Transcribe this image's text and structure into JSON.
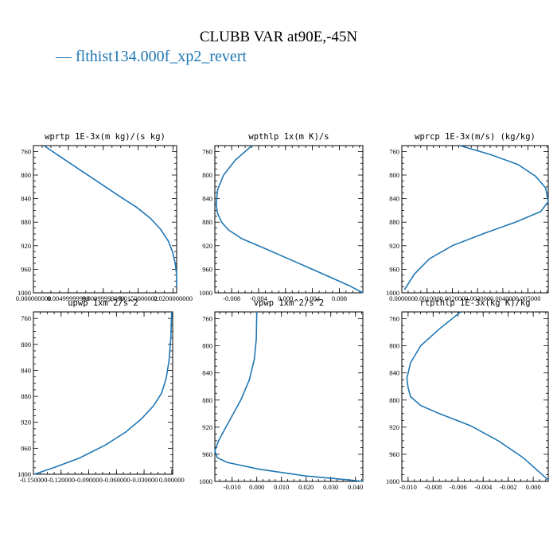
{
  "title": "CLUBB VAR at90E,-45N",
  "legend": {
    "label": "— flthist134.000f_xp2_revert",
    "color": "#1f77b4"
  },
  "chart_data": [
    {
      "type": "line",
      "title": "wprtp  1E-3x(m kg)/(s kg)",
      "ylim": [
        1000,
        750
      ],
      "y_ticks": [
        760,
        800,
        840,
        880,
        920,
        960,
        1000
      ],
      "xlim": [
        0.0,
        0.0205
      ],
      "x_ticks": [
        0.0,
        0.005,
        0.01,
        0.015,
        0.02
      ],
      "x_tick_labels": [
        "0.000000000",
        "0.00499999990",
        "0.00999999999",
        "0.0150000002",
        "0.0200000000"
      ],
      "series": [
        {
          "color": "#1f77b4",
          "x": [
            0.0015,
            0.004,
            0.0065,
            0.0093,
            0.0122,
            0.0148,
            0.0167,
            0.0182,
            0.0193,
            0.0199,
            0.0203,
            0.0205,
            0.0205
          ],
          "y": [
            750,
            770,
            790,
            812,
            835,
            855,
            873,
            892,
            912,
            930,
            950,
            970,
            990
          ]
        }
      ]
    },
    {
      "type": "line",
      "title": "wpthlp  1x(m K)/s",
      "ylim": [
        1000,
        750
      ],
      "y_ticks": [
        760,
        800,
        840,
        880,
        920,
        960,
        1000
      ],
      "xlim": [
        -0.0105,
        0.0115
      ],
      "x_ticks": [
        -0.008,
        -0.004,
        0.0,
        0.004,
        0.008
      ],
      "x_tick_labels": [
        "-0.008",
        "-0.004",
        "0.000",
        "0.004",
        "0.008"
      ],
      "series": [
        {
          "color": "#1f77b4",
          "x": [
            -0.005,
            -0.0075,
            -0.0092,
            -0.0101,
            -0.0103,
            -0.0101,
            -0.0095,
            -0.0085,
            -0.0065,
            -0.003,
            0.001,
            0.005,
            0.0095,
            0.0115
          ],
          "y": [
            750,
            775,
            800,
            825,
            850,
            865,
            880,
            893,
            908,
            925,
            945,
            965,
            988,
            1000
          ]
        }
      ]
    },
    {
      "type": "line",
      "title": "wprcp  1E-3x(m/s) (kg/kg)",
      "ylim": [
        1000,
        750
      ],
      "y_ticks": [
        760,
        800,
        840,
        880,
        920,
        960,
        1000
      ],
      "xlim": [
        0.0,
        0.0058
      ],
      "x_ticks": [
        0.0,
        0.001,
        0.002,
        0.003,
        0.004,
        0.005
      ],
      "x_tick_labels": [
        "0.000000",
        "0.001000",
        "0.002000",
        "0.003000",
        "0.004000",
        "0.005000"
      ],
      "series": [
        {
          "color": "#1f77b4",
          "x": [
            0.0023,
            0.0035,
            0.0046,
            0.0053,
            0.0057,
            0.0058,
            0.0055,
            0.0045,
            0.0032,
            0.002,
            0.0011,
            0.0005,
            0.0001
          ],
          "y": [
            750,
            765,
            782,
            802,
            822,
            845,
            862,
            880,
            900,
            920,
            942,
            968,
            995
          ]
        }
      ]
    },
    {
      "type": "line",
      "title": "upwp  1xm^2/s^2",
      "ylim": [
        1000,
        750
      ],
      "y_ticks": [
        760,
        800,
        840,
        880,
        920,
        960,
        1000
      ],
      "xlim": [
        -0.15,
        0.001
      ],
      "x_ticks": [
        -0.15,
        -0.12,
        -0.09,
        -0.06,
        -0.03,
        0.0
      ],
      "x_tick_labels": [
        "-0.150000",
        "-0.120000",
        "-0.090000",
        "-0.060000",
        "-0.030000",
        "0.000000"
      ],
      "series": [
        {
          "color": "#1f77b4",
          "x": [
            0.0,
            -0.001,
            -0.003,
            -0.006,
            -0.011,
            -0.02,
            -0.033,
            -0.05,
            -0.072,
            -0.1,
            -0.128,
            -0.149
          ],
          "y": [
            750,
            790,
            825,
            852,
            875,
            895,
            915,
            935,
            955,
            975,
            990,
            1000
          ]
        }
      ]
    },
    {
      "type": "line",
      "title": "vpwp  1xm^2/s^2",
      "ylim": [
        1000,
        750
      ],
      "y_ticks": [
        760,
        800,
        840,
        880,
        920,
        960,
        1000
      ],
      "xlim": [
        -0.017,
        0.043
      ],
      "x_ticks": [
        -0.01,
        0.0,
        0.01,
        0.02,
        0.03,
        0.04
      ],
      "x_tick_labels": [
        "-0.010",
        "0.000",
        "0.010",
        "0.020",
        "0.030",
        "0.040"
      ],
      "series": [
        {
          "color": "#1f77b4",
          "x": [
            0.0,
            -0.0002,
            -0.001,
            -0.003,
            -0.0065,
            -0.011,
            -0.0155,
            -0.017,
            -0.016,
            -0.012,
            0.001,
            0.02,
            0.038,
            0.043
          ],
          "y": [
            750,
            790,
            820,
            850,
            880,
            910,
            940,
            955,
            965,
            972,
            982,
            992,
            998,
            1000
          ]
        }
      ]
    },
    {
      "type": "line",
      "title": "rtpthlp  1E-3x(kg K)/kg",
      "ylim": [
        1000,
        750
      ],
      "y_ticks": [
        760,
        800,
        840,
        880,
        920,
        960,
        1000
      ],
      "xlim": [
        -0.0105,
        0.0012
      ],
      "x_ticks": [
        -0.01,
        -0.008,
        -0.006,
        -0.004,
        -0.002,
        0.0
      ],
      "x_tick_labels": [
        "-0.010",
        "-0.008",
        "-0.006",
        "-0.004",
        "-0.002",
        "0.000"
      ],
      "series": [
        {
          "color": "#1f77b4",
          "x": [
            -0.0058,
            -0.0075,
            -0.009,
            -0.0098,
            -0.0101,
            -0.01,
            -0.0098,
            -0.009,
            -0.0075,
            -0.005,
            -0.0028,
            -0.0008,
            0.0012
          ],
          "y": [
            750,
            775,
            800,
            825,
            848,
            862,
            875,
            888,
            900,
            918,
            940,
            965,
            998
          ]
        }
      ]
    }
  ]
}
